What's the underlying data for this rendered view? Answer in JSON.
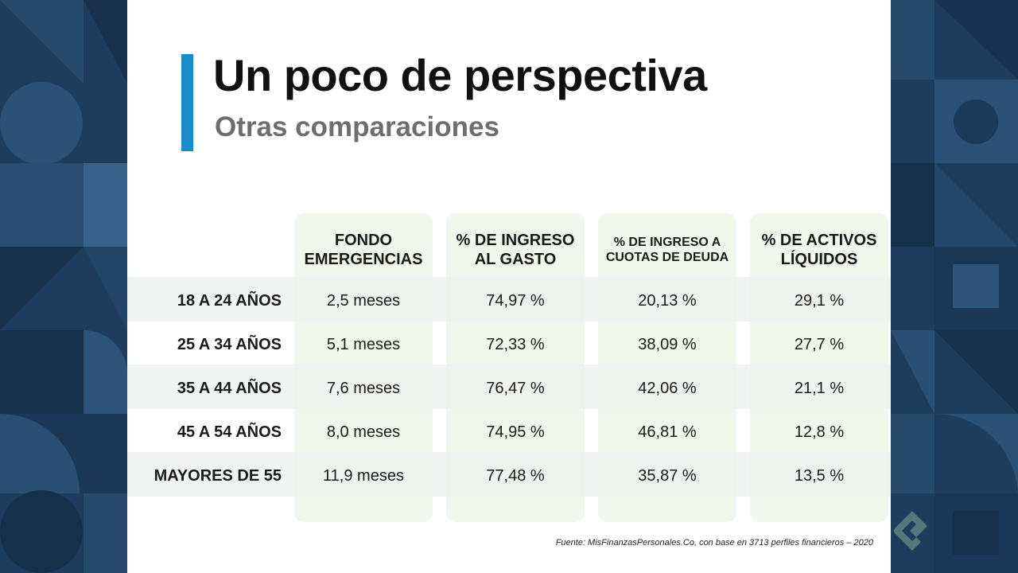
{
  "slide": {
    "title": "Un poco de perspectiva",
    "subtitle": "Otras comparaciones",
    "accent_color": "#1a8cc8",
    "source": "Fuente: MisFinanzasPersonales.Co, con base en 3713 perfiles financieros – 2020"
  },
  "table": {
    "headers": [
      [
        "FONDO",
        "EMERGENCIAS"
      ],
      [
        "% DE INGRESO",
        "AL GASTO"
      ],
      [
        "% DE INGRESO A",
        "CUOTAS DE DEUDA"
      ],
      [
        "% DE ACTIVOS",
        "LÍQUIDOS"
      ]
    ],
    "rows": [
      {
        "label": "18 A 24 AÑOS",
        "values": [
          "2,5 meses",
          "74,97 %",
          "20,13 %",
          "29,1 %"
        ]
      },
      {
        "label": "25 A 34 AÑOS",
        "values": [
          "5,1 meses",
          "72,33 %",
          "38,09 %",
          "27,7 %"
        ]
      },
      {
        "label": "35 A 44 AÑOS",
        "values": [
          "7,6 meses",
          "76,47 %",
          "42,06 %",
          "21,1 %"
        ]
      },
      {
        "label": "45 A 54 AÑOS",
        "values": [
          "8,0 meses",
          "74,95 %",
          "46,81 %",
          "12,8 %"
        ]
      },
      {
        "label": "MAYORES DE 55",
        "values": [
          "11,9 meses",
          "77,48 %",
          "35,87 %",
          "13,5 %"
        ]
      }
    ],
    "column_bg_color": "#f1f7ea"
  },
  "watermark": {
    "logo_icon": "platzi-logo-icon"
  }
}
